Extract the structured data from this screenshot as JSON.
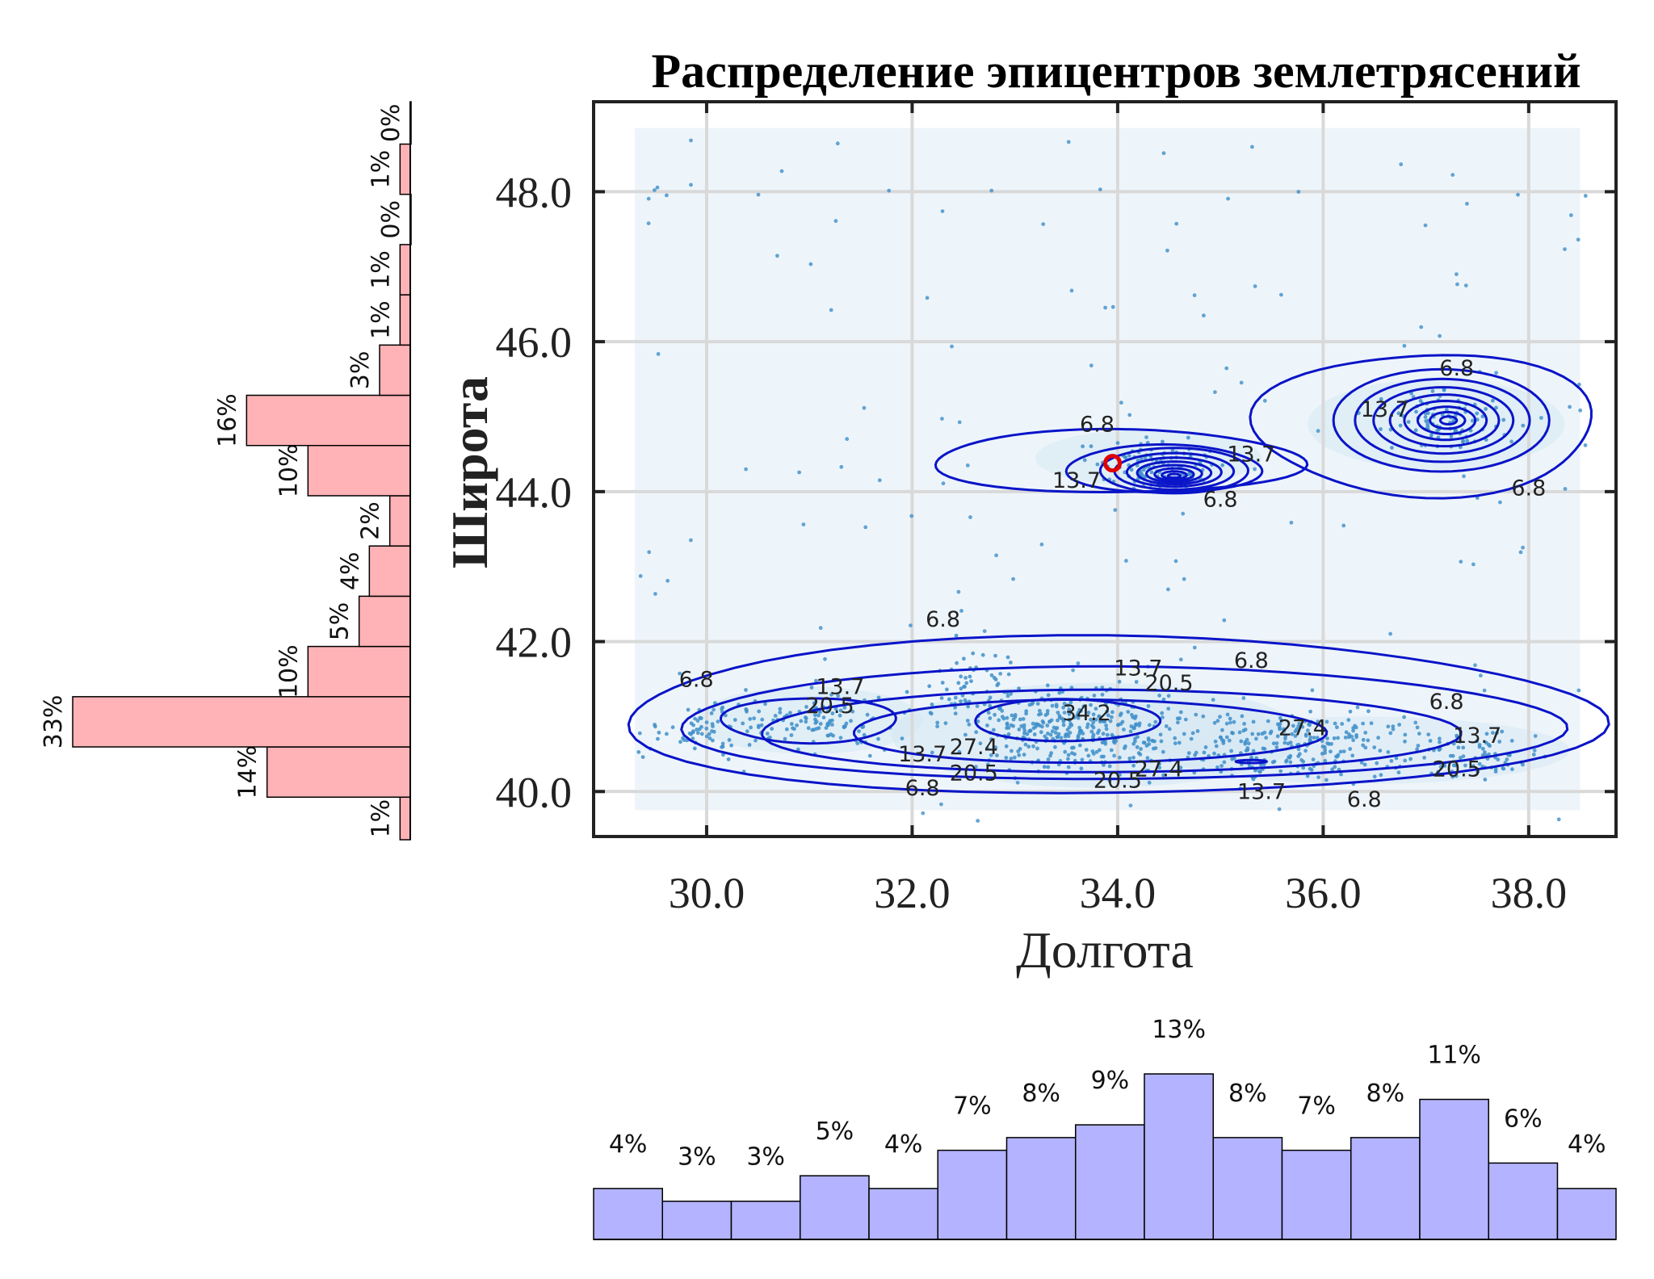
{
  "chart_data": {
    "main": {
      "type": "scatter",
      "title": "Распределение эпицентров землетрясений",
      "xlabel": "Долгота",
      "ylabel": "Широта",
      "xlim": [
        28.9,
        38.85
      ],
      "ylim": [
        39.4,
        49.2
      ],
      "xticks": [
        30.0,
        32.0,
        34.0,
        36.0,
        38.0
      ],
      "yticks": [
        40.0,
        42.0,
        44.0,
        46.0,
        48.0
      ],
      "xtick_labels": [
        "30.0",
        "32.0",
        "34.0",
        "36.0",
        "38.0"
      ],
      "ytick_labels": [
        "40.0",
        "42.0",
        "44.0",
        "46.0",
        "48.0"
      ],
      "grid": true,
      "contour_levels": [
        "6.8",
        "13.7",
        "20.5",
        "27.4",
        "34.2"
      ],
      "contour_labels": [
        {
          "text": "6.8",
          "x": 33.8,
          "y": 44.8
        },
        {
          "text": "13.7",
          "x": 33.6,
          "y": 44.05
        },
        {
          "text": "13.7",
          "x": 35.3,
          "y": 44.4
        },
        {
          "text": "6.8",
          "x": 35.0,
          "y": 43.8
        },
        {
          "text": "6.8",
          "x": 37.3,
          "y": 45.55
        },
        {
          "text": "13.7",
          "x": 36.6,
          "y": 45.0
        },
        {
          "text": "6.8",
          "x": 38.0,
          "y": 43.95
        },
        {
          "text": "6.8",
          "x": 32.3,
          "y": 42.2
        },
        {
          "text": "6.8",
          "x": 35.3,
          "y": 41.65
        },
        {
          "text": "6.8",
          "x": 29.9,
          "y": 41.4
        },
        {
          "text": "13.7",
          "x": 31.3,
          "y": 41.3
        },
        {
          "text": "20.5",
          "x": 31.2,
          "y": 41.05
        },
        {
          "text": "13.7",
          "x": 34.2,
          "y": 41.55
        },
        {
          "text": "20.5",
          "x": 34.5,
          "y": 41.35
        },
        {
          "text": "34.2",
          "x": 33.7,
          "y": 40.95
        },
        {
          "text": "27.4",
          "x": 35.8,
          "y": 40.75
        },
        {
          "text": "6.8",
          "x": 37.2,
          "y": 41.1
        },
        {
          "text": "13.7",
          "x": 37.5,
          "y": 40.65
        },
        {
          "text": "20.5",
          "x": 37.3,
          "y": 40.2
        },
        {
          "text": "27.4",
          "x": 34.4,
          "y": 40.2
        },
        {
          "text": "20.5",
          "x": 34.0,
          "y": 40.05
        },
        {
          "text": "13.7",
          "x": 35.4,
          "y": 39.9
        },
        {
          "text": "6.8",
          "x": 36.4,
          "y": 39.8
        },
        {
          "text": "6.8",
          "x": 32.1,
          "y": 39.95
        },
        {
          "text": "13.7",
          "x": 32.1,
          "y": 40.4
        },
        {
          "text": "20.5",
          "x": 32.6,
          "y": 40.15
        },
        {
          "text": "27.4",
          "x": 32.6,
          "y": 40.5
        }
      ]
    },
    "lat_hist": {
      "type": "bar",
      "orientation": "horizontal",
      "bin_width": 0.67,
      "bin_centers": [
        39.59,
        40.26,
        40.93,
        41.6,
        42.27,
        42.94,
        43.61,
        44.28,
        44.95,
        45.62,
        46.29,
        46.96,
        47.63,
        48.3,
        48.97
      ],
      "values": [
        1,
        14,
        33,
        10,
        5,
        4,
        2,
        10,
        16,
        3,
        1,
        1,
        0,
        1,
        0
      ],
      "labels": [
        "1%",
        "14%",
        "33%",
        "10%",
        "5%",
        "4%",
        "2%",
        "10%",
        "16%",
        "3%",
        "1%",
        "1%",
        "0%",
        "1%",
        "0%"
      ]
    },
    "lon_hist": {
      "type": "bar",
      "bin_edges": [
        28.9,
        29.57,
        30.24,
        30.91,
        31.58,
        32.25,
        32.92,
        33.59,
        34.26,
        34.93,
        35.6,
        36.27,
        36.94,
        37.61,
        38.28,
        38.85
      ],
      "values": [
        4,
        3,
        3,
        5,
        4,
        7,
        8,
        9,
        13,
        8,
        7,
        8,
        11,
        6,
        4
      ],
      "labels": [
        "4%",
        "3%",
        "3%",
        "5%",
        "4%",
        "7%",
        "8%",
        "9%",
        "13%",
        "8%",
        "7%",
        "8%",
        "11%",
        "6%",
        "4%"
      ]
    }
  },
  "colors": {
    "contour": "#0a14c8",
    "point": "#3f8fc9",
    "density_fill": "#d6e7f3",
    "lat_bar": "#ffb3b6",
    "lon_bar": "#b3b3ff",
    "highlight": "#e00000"
  }
}
